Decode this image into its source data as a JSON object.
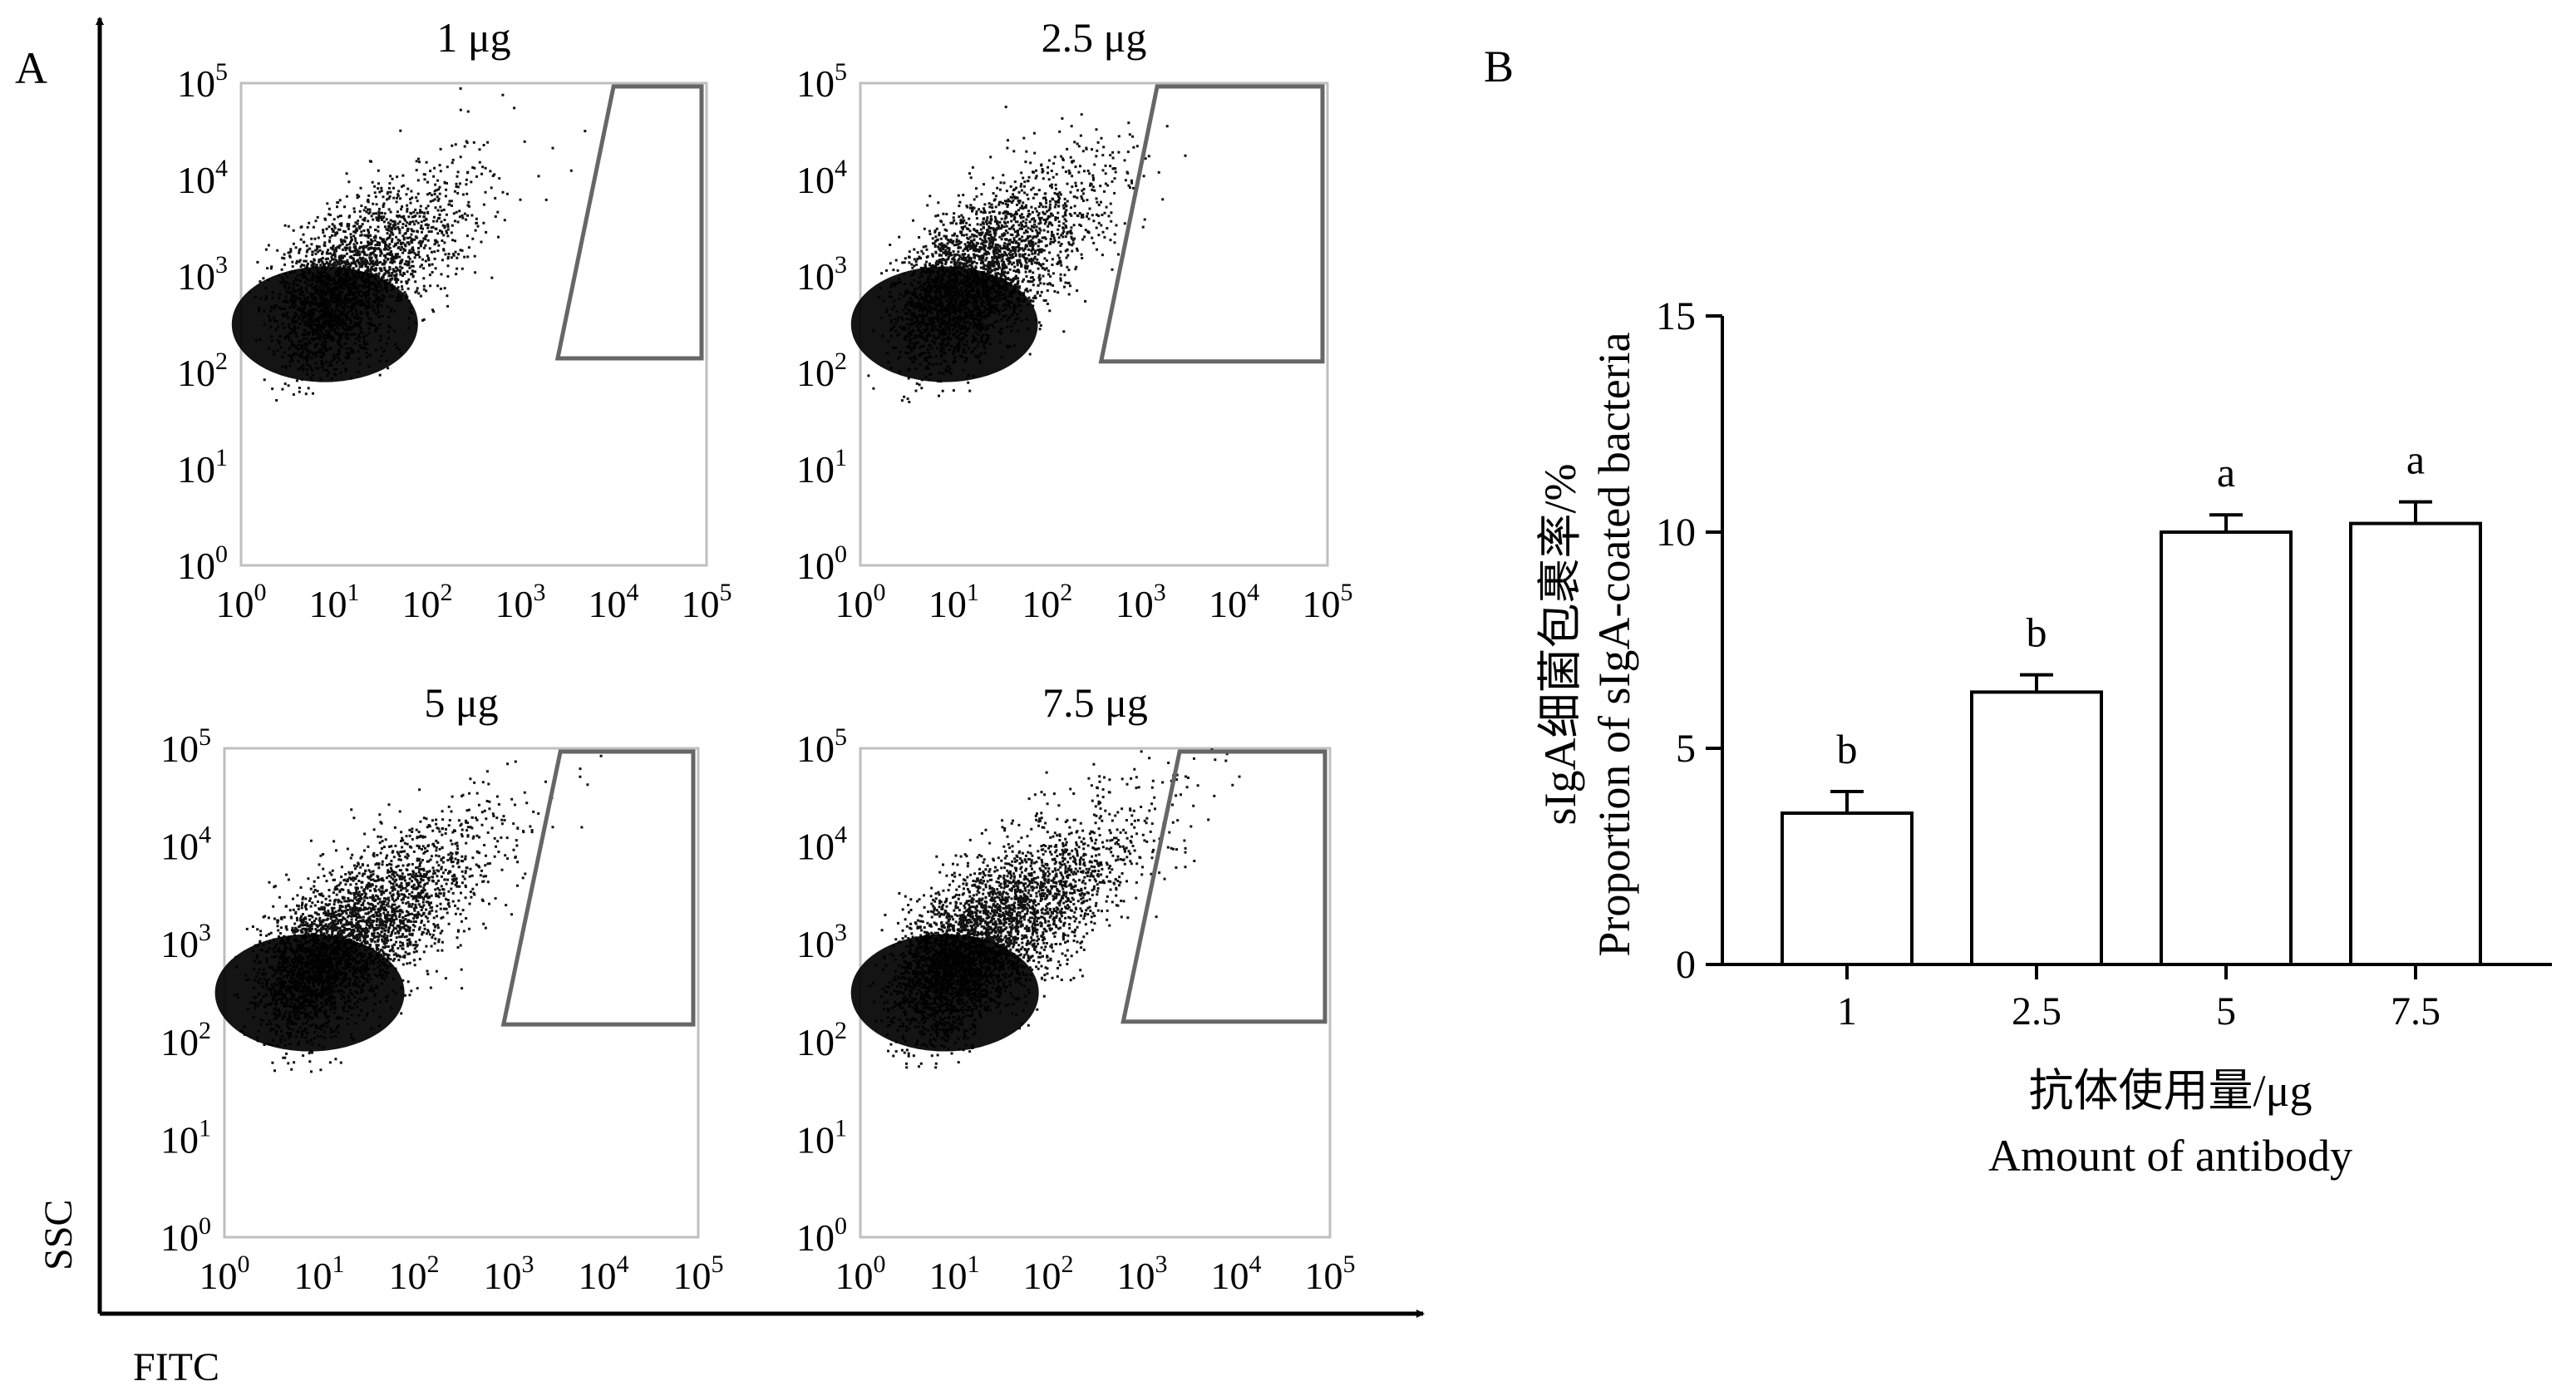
{
  "panel_a_letter": "A",
  "panel_b_letter": "B",
  "chart_data": [
    {
      "type": "scatter",
      "panel": "A",
      "xlabel": "FITC",
      "ylabel": "SSC",
      "scale": "log",
      "xlim": [
        1,
        100000
      ],
      "ylim": [
        1,
        100000
      ],
      "tick_labels": [
        "10",
        "0",
        "10",
        "1",
        "10",
        "2",
        "10",
        "3",
        "10",
        "4",
        "10",
        "5"
      ],
      "tick_base": "10",
      "tick_exponents": [
        "0",
        "1",
        "2",
        "3",
        "4",
        "5"
      ],
      "plots": [
        {
          "title": "1 μg",
          "gate_min_fitc": 2000,
          "gate_min_ssc": 140
        },
        {
          "title": "2.5 μg",
          "gate_min_fitc": 300,
          "gate_min_ssc": 130
        },
        {
          "title": "5 μg",
          "gate_min_fitc": 700,
          "gate_min_ssc": 150
        },
        {
          "title": "7.5 μg",
          "gate_min_fitc": 500,
          "gate_min_ssc": 160
        }
      ]
    },
    {
      "type": "bar",
      "panel": "B",
      "categories": [
        "1",
        "2.5",
        "5",
        "7.5"
      ],
      "values": [
        3.5,
        6.3,
        10.0,
        10.2
      ],
      "errors": [
        0.5,
        0.4,
        0.4,
        0.5
      ],
      "significance": [
        "b",
        "b",
        "a",
        "a"
      ],
      "ylim": [
        0,
        15
      ],
      "yticks": [
        "0",
        "5",
        "10",
        "15"
      ],
      "ylabel_cn": "sIgA细菌包裹率/%",
      "ylabel_en": "Proportion of sIgA-coated bacteria",
      "xlabel_cn": "抗体使用量/μg",
      "xlabel_en": "Amount of antibody"
    }
  ]
}
